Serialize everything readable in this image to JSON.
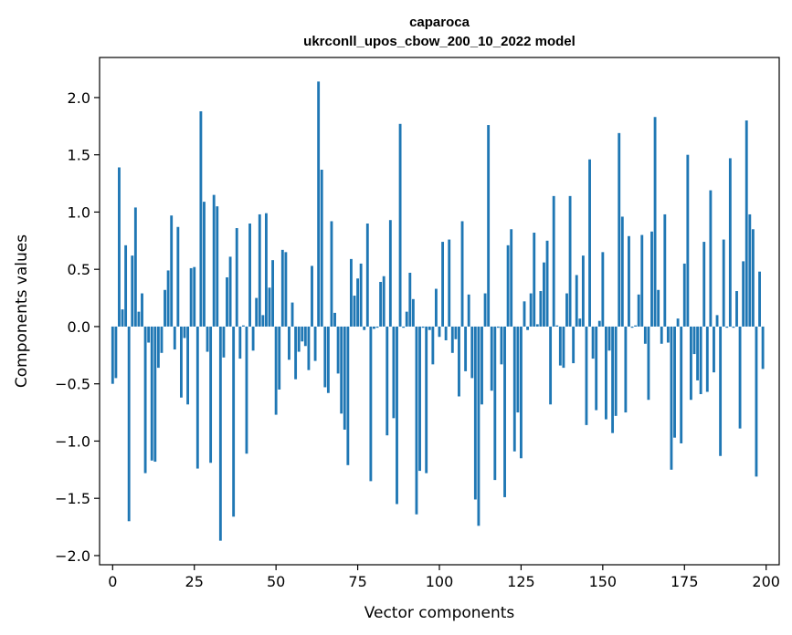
{
  "chart_data": {
    "type": "bar",
    "title": "caparoca",
    "subtitle": "ukrconll_upos_cbow_200_10_2022 model",
    "xlabel": "Vector components",
    "ylabel": "Components values",
    "xlim": [
      -4,
      204
    ],
    "ylim": [
      -2.08,
      2.35
    ],
    "x_ticks": [
      0,
      25,
      50,
      75,
      100,
      125,
      150,
      175,
      200
    ],
    "x_tick_labels": [
      "0",
      "25",
      "50",
      "75",
      "100",
      "125",
      "150",
      "175",
      "200"
    ],
    "y_ticks": [
      2.0,
      1.5,
      1.0,
      0.5,
      0.0,
      -0.5,
      -1.0,
      -1.5,
      -2.0
    ],
    "y_tick_labels": [
      "2.0",
      "1.5",
      "1.0",
      "0.5",
      "0.0",
      "−0.5",
      "−1.0",
      "−1.5",
      "−2.0"
    ],
    "bar_color": "#1f77b4",
    "grid": false,
    "x": [
      0,
      1,
      2,
      3,
      4,
      5,
      6,
      7,
      8,
      9,
      10,
      11,
      12,
      13,
      14,
      15,
      16,
      17,
      18,
      19,
      20,
      21,
      22,
      23,
      24,
      25,
      26,
      27,
      28,
      29,
      30,
      31,
      32,
      33,
      34,
      35,
      36,
      37,
      38,
      39,
      40,
      41,
      42,
      43,
      44,
      45,
      46,
      47,
      48,
      49,
      50,
      51,
      52,
      53,
      54,
      55,
      56,
      57,
      58,
      59,
      60,
      61,
      62,
      63,
      64,
      65,
      66,
      67,
      68,
      69,
      70,
      71,
      72,
      73,
      74,
      75,
      76,
      77,
      78,
      79,
      80,
      81,
      82,
      83,
      84,
      85,
      86,
      87,
      88,
      89,
      90,
      91,
      92,
      93,
      94,
      95,
      96,
      97,
      98,
      99,
      100,
      101,
      102,
      103,
      104,
      105,
      106,
      107,
      108,
      109,
      110,
      111,
      112,
      113,
      114,
      115,
      116,
      117,
      118,
      119,
      120,
      121,
      122,
      123,
      124,
      125,
      126,
      127,
      128,
      129,
      130,
      131,
      132,
      133,
      134,
      135,
      136,
      137,
      138,
      139,
      140,
      141,
      142,
      143,
      144,
      145,
      146,
      147,
      148,
      149,
      150,
      151,
      152,
      153,
      154,
      155,
      156,
      157,
      158,
      159,
      160,
      161,
      162,
      163,
      164,
      165,
      166,
      167,
      168,
      169,
      170,
      171,
      172,
      173,
      174,
      175,
      176,
      177,
      178,
      179,
      180,
      181,
      182,
      183,
      184,
      185,
      186,
      187,
      188,
      189,
      190,
      191,
      192,
      193,
      194,
      195,
      196,
      197,
      198,
      199
    ],
    "values": [
      -0.5,
      -0.45,
      1.39,
      0.15,
      0.71,
      -1.7,
      0.62,
      1.04,
      0.13,
      0.29,
      -1.28,
      -0.14,
      -1.17,
      -1.18,
      -0.36,
      -0.23,
      0.32,
      0.49,
      0.97,
      -0.2,
      0.87,
      -0.62,
      -0.1,
      -0.68,
      0.51,
      0.52,
      -1.24,
      1.88,
      1.09,
      -0.22,
      -1.19,
      1.15,
      1.05,
      -1.87,
      -0.27,
      0.43,
      0.61,
      -1.66,
      0.86,
      -0.28,
      0.01,
      -1.11,
      0.9,
      -0.21,
      0.25,
      0.98,
      0.1,
      0.99,
      0.34,
      0.58,
      -0.77,
      -0.55,
      0.67,
      0.65,
      -0.29,
      0.21,
      -0.46,
      -0.22,
      -0.13,
      -0.17,
      -0.38,
      0.53,
      -0.3,
      2.14,
      1.37,
      -0.53,
      -0.58,
      0.92,
      0.12,
      -0.41,
      -0.76,
      -0.9,
      -1.21,
      0.59,
      0.27,
      0.42,
      0.55,
      -0.03,
      0.9,
      -1.35,
      -0.02,
      -0.01,
      0.39,
      0.44,
      -0.95,
      0.93,
      -0.8,
      -1.55,
      1.77,
      -0.01,
      0.13,
      0.47,
      0.24,
      -1.64,
      -1.26,
      -0.01,
      -1.28,
      -0.03,
      -0.33,
      0.33,
      -0.09,
      0.74,
      -0.12,
      0.76,
      -0.23,
      -0.11,
      -0.61,
      0.92,
      -0.39,
      0.28,
      -0.45,
      -1.51,
      -1.74,
      -0.68,
      0.29,
      1.76,
      -0.56,
      -1.34,
      -0.01,
      -0.33,
      -1.49,
      0.71,
      0.85,
      -1.09,
      -0.75,
      -1.15,
      0.22,
      -0.03,
      0.29,
      0.82,
      0.02,
      0.31,
      0.56,
      0.75,
      -0.68,
      1.14,
      0.01,
      -0.34,
      -0.36,
      0.29,
      1.14,
      -0.32,
      0.45,
      0.07,
      0.62,
      -0.86,
      1.46,
      -0.28,
      -0.73,
      0.05,
      0.65,
      -0.81,
      -0.21,
      -0.93,
      -0.78,
      1.69,
      0.96,
      -0.75,
      0.79,
      -0.01,
      0.01,
      0.28,
      0.8,
      -0.15,
      -0.64,
      0.83,
      1.83,
      0.32,
      -0.15,
      0.98,
      -0.14,
      -1.25,
      -0.97,
      0.07,
      -1.02,
      0.55,
      1.5,
      -0.64,
      -0.24,
      -0.47,
      -0.59,
      0.74,
      -0.57,
      1.19,
      -0.4,
      0.1,
      -1.13,
      0.76,
      -0.01,
      1.47,
      -0.01,
      0.31,
      -0.89,
      0.57,
      1.8,
      0.98,
      0.85,
      -1.31,
      0.48,
      -0.37
    ]
  }
}
